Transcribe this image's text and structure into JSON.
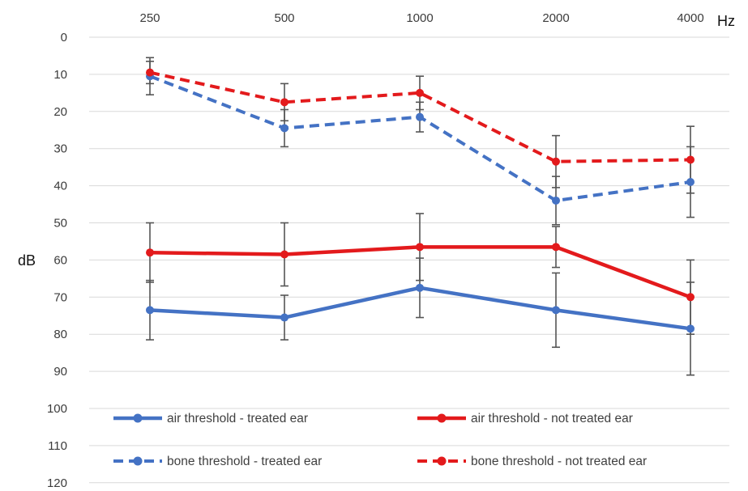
{
  "chart_data": {
    "type": "line",
    "x": [
      250,
      500,
      1000,
      2000,
      4000
    ],
    "categories": [
      "250",
      "500",
      "1000",
      "2000",
      "4000"
    ],
    "xlabel": "Hz",
    "ylabel": "dB",
    "ylim": [
      0,
      120
    ],
    "y_reversed": true,
    "x_axis_position": "top",
    "yticks": [
      "0",
      "10",
      "20",
      "30",
      "40",
      "50",
      "60",
      "70",
      "80",
      "90",
      "100",
      "110",
      "120"
    ],
    "grid": true,
    "legend_position": "bottom",
    "series": [
      {
        "name": "air threshold - treated ear",
        "color": "#4472C4",
        "style": "solid",
        "values": [
          73.5,
          75.5,
          67.5,
          73.5,
          78.5
        ],
        "error": [
          8,
          6,
          8,
          10,
          12.5
        ]
      },
      {
        "name": "air threshold - not treated ear",
        "color": "#E31A1C",
        "style": "solid",
        "values": [
          58,
          58.5,
          56.5,
          56.5,
          70
        ],
        "error": [
          8,
          8.5,
          9,
          5.5,
          10
        ]
      },
      {
        "name": "bone threshold - treated ear",
        "color": "#4472C4",
        "style": "dashed",
        "values": [
          10.5,
          24.5,
          21.5,
          44,
          39
        ],
        "error": [
          5,
          5,
          4,
          6.5,
          9.5
        ]
      },
      {
        "name": "bone threshold - not treated ear",
        "color": "#E31A1C",
        "style": "dashed",
        "values": [
          9.5,
          17.5,
          15,
          33.5,
          33
        ],
        "error": [
          3,
          5,
          4.5,
          7,
          9
        ]
      }
    ]
  }
}
